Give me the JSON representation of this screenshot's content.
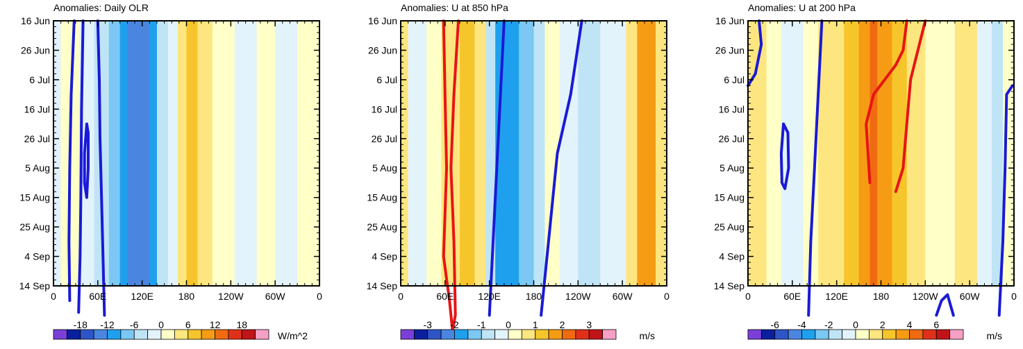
{
  "chart_data": [
    {
      "type": "heatmap",
      "title": "Anomalies: Daily OLR",
      "units": "W/m^2",
      "x_ticks": [
        "0",
        "60E",
        "120E",
        "180",
        "120W",
        "60W",
        "0"
      ],
      "y_ticks": [
        "16 Jun",
        "26 Jun",
        "6 Jul",
        "16 Jul",
        "26 Jul",
        "5 Aug",
        "15 Aug",
        "25 Aug",
        "4 Sep",
        "14 Sep"
      ],
      "colorbar_labels": [
        "-18",
        "-12",
        "-6",
        "0",
        "6",
        "12",
        "18"
      ],
      "colorbar_colors": [
        "#7a3fd8",
        "#0a1f9e",
        "#2e55c8",
        "#4a86e0",
        "#1ea0ee",
        "#7ac8f3",
        "#bfe4f6",
        "#e3f3fb",
        "#ffffc8",
        "#fde67f",
        "#f6c52b",
        "#f59c14",
        "#ef6a10",
        "#e0301a",
        "#c01418",
        "#f7a0c6"
      ],
      "longitude_bands": [
        {
          "lon_start": 0,
          "lon_end": 10,
          "level": 7
        },
        {
          "lon_start": 10,
          "lon_end": 35,
          "level": 8
        },
        {
          "lon_start": 35,
          "lon_end": 55,
          "level": 7
        },
        {
          "lon_start": 55,
          "lon_end": 75,
          "level": 6
        },
        {
          "lon_start": 75,
          "lon_end": 90,
          "level": 5
        },
        {
          "lon_start": 90,
          "lon_end": 100,
          "level": 4
        },
        {
          "lon_start": 100,
          "lon_end": 130,
          "level": 3
        },
        {
          "lon_start": 130,
          "lon_end": 140,
          "level": 4
        },
        {
          "lon_start": 140,
          "lon_end": 155,
          "level": 6
        },
        {
          "lon_start": 155,
          "lon_end": 168,
          "level": 7
        },
        {
          "lon_start": 168,
          "lon_end": 180,
          "level": 9
        },
        {
          "lon_start": 180,
          "lon_end": 195,
          "level": 10
        },
        {
          "lon_start": 195,
          "lon_end": 215,
          "level": 9
        },
        {
          "lon_start": 215,
          "lon_end": 245,
          "level": 8
        },
        {
          "lon_start": 245,
          "lon_end": 275,
          "level": 7
        },
        {
          "lon_start": 275,
          "lon_end": 300,
          "level": 8
        },
        {
          "lon_start": 300,
          "lon_end": 330,
          "level": 7
        },
        {
          "lon_start": 330,
          "lon_end": 360,
          "level": 8
        }
      ],
      "contours": [
        {
          "color": "#1a1ad6",
          "points": [
            [
              28,
              0
            ],
            [
              24,
              25
            ],
            [
              22,
              50
            ],
            [
              21,
              75
            ],
            [
              22,
              95
            ]
          ]
        },
        {
          "color": "#1a1ad6",
          "points": [
            [
              40,
              0
            ],
            [
              38,
              30
            ],
            [
              37,
              60
            ],
            [
              36,
              80
            ],
            [
              34,
              99
            ]
          ]
        },
        {
          "color": "#1a1ad6",
          "points": [
            [
              45,
              35
            ],
            [
              42,
              45
            ],
            [
              42,
              55
            ],
            [
              45,
              60
            ],
            [
              47,
              50
            ],
            [
              47,
              38
            ],
            [
              45,
              35
            ]
          ]
        },
        {
          "color": "#1a1ad6",
          "points": [
            [
              60,
              0
            ],
            [
              62,
              20
            ],
            [
              63,
              40
            ],
            [
              65,
              60
            ],
            [
              67,
              80
            ],
            [
              69,
              100
            ]
          ]
        }
      ]
    },
    {
      "type": "heatmap",
      "title": "Anomalies: U at 850 hPa",
      "units": "m/s",
      "x_ticks": [
        "0",
        "60E",
        "120E",
        "180",
        "120W",
        "60W",
        "0"
      ],
      "y_ticks": [
        "16 Jun",
        "26 Jun",
        "6 Jul",
        "16 Jul",
        "26 Jul",
        "5 Aug",
        "15 Aug",
        "25 Aug",
        "4 Sep",
        "14 Sep"
      ],
      "colorbar_labels": [
        "-3",
        "-2",
        "-1",
        "0",
        "1",
        "2",
        "3"
      ],
      "colorbar_colors": [
        "#7a3fd8",
        "#0a1f9e",
        "#2e55c8",
        "#4a86e0",
        "#1ea0ee",
        "#7ac8f3",
        "#bfe4f6",
        "#e3f3fb",
        "#ffffc8",
        "#fde67f",
        "#f6c52b",
        "#f59c14",
        "#ef6a10",
        "#e0301a",
        "#c01418",
        "#f7a0c6"
      ],
      "longitude_bands": [
        {
          "lon_start": 0,
          "lon_end": 10,
          "level": 9
        },
        {
          "lon_start": 10,
          "lon_end": 35,
          "level": 7
        },
        {
          "lon_start": 35,
          "lon_end": 55,
          "level": 8
        },
        {
          "lon_start": 55,
          "lon_end": 80,
          "level": 9
        },
        {
          "lon_start": 80,
          "lon_end": 100,
          "level": 10
        },
        {
          "lon_start": 100,
          "lon_end": 115,
          "level": 9
        },
        {
          "lon_start": 115,
          "lon_end": 128,
          "level": 6
        },
        {
          "lon_start": 128,
          "lon_end": 160,
          "level": 4
        },
        {
          "lon_start": 160,
          "lon_end": 180,
          "level": 5
        },
        {
          "lon_start": 180,
          "lon_end": 195,
          "level": 6
        },
        {
          "lon_start": 195,
          "lon_end": 215,
          "level": 8
        },
        {
          "lon_start": 215,
          "lon_end": 240,
          "level": 7
        },
        {
          "lon_start": 240,
          "lon_end": 270,
          "level": 6
        },
        {
          "lon_start": 270,
          "lon_end": 305,
          "level": 7
        },
        {
          "lon_start": 305,
          "lon_end": 320,
          "level": 9
        },
        {
          "lon_start": 320,
          "lon_end": 345,
          "level": 11
        },
        {
          "lon_start": 345,
          "lon_end": 360,
          "level": 9
        }
      ],
      "contours": [
        {
          "color": "#e81414",
          "points": [
            [
              58,
              0
            ],
            [
              60,
              25
            ],
            [
              62,
              50
            ],
            [
              58,
              80
            ],
            [
              66,
              95
            ],
            [
              70,
              105
            ],
            [
              74,
              100
            ],
            [
              72,
              75
            ],
            [
              68,
              50
            ],
            [
              72,
              25
            ],
            [
              78,
              0
            ]
          ]
        },
        {
          "color": "#1a1ad6",
          "points": [
            [
              120,
              100
            ],
            [
              125,
              75
            ],
            [
              130,
              50
            ],
            [
              135,
              25
            ],
            [
              140,
              0
            ]
          ]
        },
        {
          "color": "#1a1ad6",
          "points": [
            [
              190,
              100
            ],
            [
              200,
              75
            ],
            [
              212,
              45
            ],
            [
              230,
              25
            ],
            [
              245,
              0
            ]
          ]
        }
      ]
    },
    {
      "type": "heatmap",
      "title": "Anomalies: U at 200 hPa",
      "units": "m/s",
      "x_ticks": [
        "0",
        "60E",
        "120E",
        "180",
        "120W",
        "60W",
        "0"
      ],
      "y_ticks": [
        "16 Jun",
        "26 Jun",
        "6 Jul",
        "16 Jul",
        "26 Jul",
        "5 Aug",
        "15 Aug",
        "25 Aug",
        "4 Sep",
        "14 Sep"
      ],
      "colorbar_labels": [
        "-6",
        "-4",
        "-2",
        "0",
        "2",
        "4",
        "6"
      ],
      "colorbar_colors": [
        "#7a3fd8",
        "#0a1f9e",
        "#2e55c8",
        "#4a86e0",
        "#1ea0ee",
        "#7ac8f3",
        "#bfe4f6",
        "#e3f3fb",
        "#ffffc8",
        "#fde67f",
        "#f6c52b",
        "#f59c14",
        "#ef6a10",
        "#e0301a",
        "#c01418",
        "#f7a0c6"
      ],
      "longitude_bands": [
        {
          "lon_start": 0,
          "lon_end": 25,
          "level": 9
        },
        {
          "lon_start": 25,
          "lon_end": 45,
          "level": 8
        },
        {
          "lon_start": 45,
          "lon_end": 75,
          "level": 7
        },
        {
          "lon_start": 75,
          "lon_end": 95,
          "level": 8
        },
        {
          "lon_start": 95,
          "lon_end": 130,
          "level": 9
        },
        {
          "lon_start": 130,
          "lon_end": 150,
          "level": 10
        },
        {
          "lon_start": 150,
          "lon_end": 165,
          "level": 11
        },
        {
          "lon_start": 165,
          "lon_end": 175,
          "level": 12
        },
        {
          "lon_start": 175,
          "lon_end": 195,
          "level": 11
        },
        {
          "lon_start": 195,
          "lon_end": 215,
          "level": 10
        },
        {
          "lon_start": 215,
          "lon_end": 240,
          "level": 9
        },
        {
          "lon_start": 240,
          "lon_end": 280,
          "level": 8
        },
        {
          "lon_start": 280,
          "lon_end": 310,
          "level": 9
        },
        {
          "lon_start": 310,
          "lon_end": 330,
          "level": 7
        },
        {
          "lon_start": 330,
          "lon_end": 345,
          "level": 6
        },
        {
          "lon_start": 345,
          "lon_end": 360,
          "level": 8
        }
      ],
      "contours": [
        {
          "color": "#e81414",
          "points": [
            [
              165,
              55
            ],
            [
              160,
              35
            ],
            [
              170,
              25
            ],
            [
              185,
              20
            ],
            [
              200,
              15
            ],
            [
              210,
              10
            ],
            [
              215,
              0
            ]
          ]
        },
        {
          "color": "#e81414",
          "points": [
            [
              200,
              58
            ],
            [
              210,
              50
            ],
            [
              215,
              35
            ],
            [
              220,
              20
            ],
            [
              230,
              10
            ],
            [
              240,
              0
            ]
          ]
        },
        {
          "color": "#1a1ad6",
          "points": [
            [
              100,
              0
            ],
            [
              95,
              25
            ],
            [
              90,
              50
            ],
            [
              85,
              75
            ],
            [
              82,
              100
            ]
          ]
        },
        {
          "color": "#1a1ad6",
          "points": [
            [
              48,
              35
            ],
            [
              45,
              45
            ],
            [
              46,
              55
            ],
            [
              50,
              57
            ],
            [
              55,
              50
            ],
            [
              54,
              38
            ],
            [
              48,
              35
            ]
          ]
        },
        {
          "color": "#1a1ad6",
          "points": [
            [
              340,
              100
            ],
            [
              345,
              75
            ],
            [
              348,
              50
            ],
            [
              350,
              25
            ],
            [
              358,
              22
            ]
          ]
        },
        {
          "color": "#1a1ad6",
          "points": [
            [
              0,
              22
            ],
            [
              10,
              18
            ],
            [
              18,
              8
            ],
            [
              15,
              0
            ]
          ]
        },
        {
          "color": "#1a1ad6",
          "points": [
            [
              255,
              100
            ],
            [
              262,
              95
            ],
            [
              270,
              93
            ],
            [
              278,
              100
            ]
          ]
        }
      ]
    }
  ]
}
